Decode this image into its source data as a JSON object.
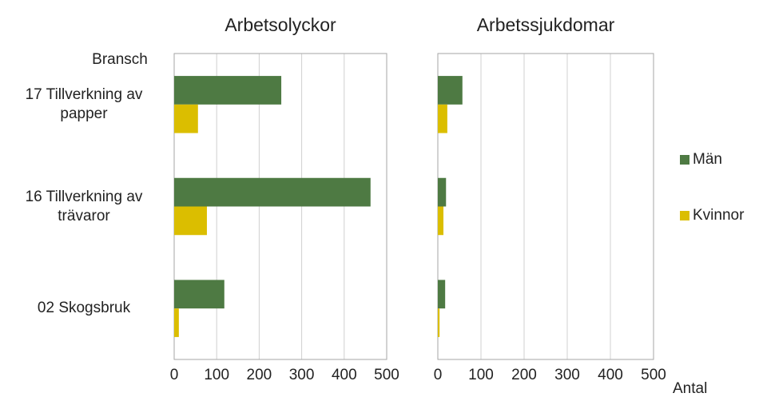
{
  "chart_data": [
    {
      "type": "barh",
      "title": "Arbetsolyckor",
      "y_label": "Bransch",
      "categories": [
        "17 Tillverkning av papper",
        "16 Tillverkning av trävaror",
        "02 Skogsbruk"
      ],
      "series": [
        {
          "name": "Män",
          "color": "#4e7a43",
          "values": [
            252,
            462,
            118
          ]
        },
        {
          "name": "Kvinnor",
          "color": "#dbbe00",
          "values": [
            56,
            77,
            11
          ]
        }
      ],
      "xlim": [
        0,
        500
      ],
      "xticks": [
        0,
        100,
        200,
        300,
        400,
        500
      ],
      "grid": true
    },
    {
      "type": "barh",
      "title": "Arbetssjukdomar",
      "x_label": "Antal",
      "series": [
        {
          "color": "#4e7a43",
          "values": [
            57,
            19,
            17
          ]
        },
        {
          "color": "#dbbe00",
          "values": [
            22,
            13,
            4
          ]
        }
      ],
      "xlim": [
        0,
        500
      ],
      "xticks": [
        0,
        100,
        200,
        300,
        400,
        500
      ],
      "grid": true
    }
  ]
}
